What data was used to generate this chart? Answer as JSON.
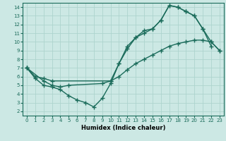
{
  "bg_color": "#cce8e4",
  "grid_color": "#add4ce",
  "line_color": "#1a6b5a",
  "line_width": 1.0,
  "marker": "+",
  "marker_size": 4,
  "marker_linewidth": 1.0,
  "xlabel": "Humidex (Indice chaleur)",
  "xlim": [
    -0.5,
    23.5
  ],
  "ylim": [
    1.5,
    14.5
  ],
  "xticks": [
    0,
    1,
    2,
    3,
    4,
    5,
    6,
    7,
    8,
    9,
    10,
    11,
    12,
    13,
    14,
    15,
    16,
    17,
    18,
    19,
    20,
    21,
    22,
    23
  ],
  "yticks": [
    2,
    3,
    4,
    5,
    6,
    7,
    8,
    9,
    10,
    11,
    12,
    13,
    14
  ],
  "line1_x": [
    0,
    1,
    2,
    3,
    10,
    11,
    12,
    13,
    14,
    15,
    16,
    17,
    18,
    19,
    20,
    21,
    22,
    23
  ],
  "line1_y": [
    7,
    6,
    5.8,
    5.5,
    5.5,
    6.0,
    6.8,
    7.5,
    8.0,
    8.5,
    9.0,
    9.5,
    9.8,
    10.0,
    10.2,
    10.2,
    10.0,
    9.0
  ],
  "line2_x": [
    0,
    1,
    2,
    3,
    4,
    5,
    6,
    7,
    8,
    9,
    10,
    11,
    12,
    13,
    14,
    15,
    16,
    17,
    18,
    19,
    20,
    21,
    22
  ],
  "line2_y": [
    7,
    5.8,
    5.0,
    4.8,
    4.5,
    3.8,
    3.3,
    3.0,
    2.5,
    3.5,
    5.2,
    7.5,
    9.5,
    10.5,
    11.3,
    11.5,
    12.5,
    14.2,
    14.0,
    13.5,
    13.0,
    11.5,
    9.5
  ],
  "line3_x": [
    0,
    2,
    3,
    4,
    5,
    9,
    10,
    11,
    12,
    13,
    14,
    15,
    16,
    17,
    18,
    19,
    20,
    21,
    22,
    23
  ],
  "line3_y": [
    7,
    5.5,
    5.0,
    4.8,
    5.0,
    5.2,
    5.5,
    7.5,
    9.2,
    10.5,
    11.0,
    11.5,
    12.5,
    14.2,
    14.0,
    13.5,
    13.0,
    11.5,
    10.0,
    9.0
  ]
}
